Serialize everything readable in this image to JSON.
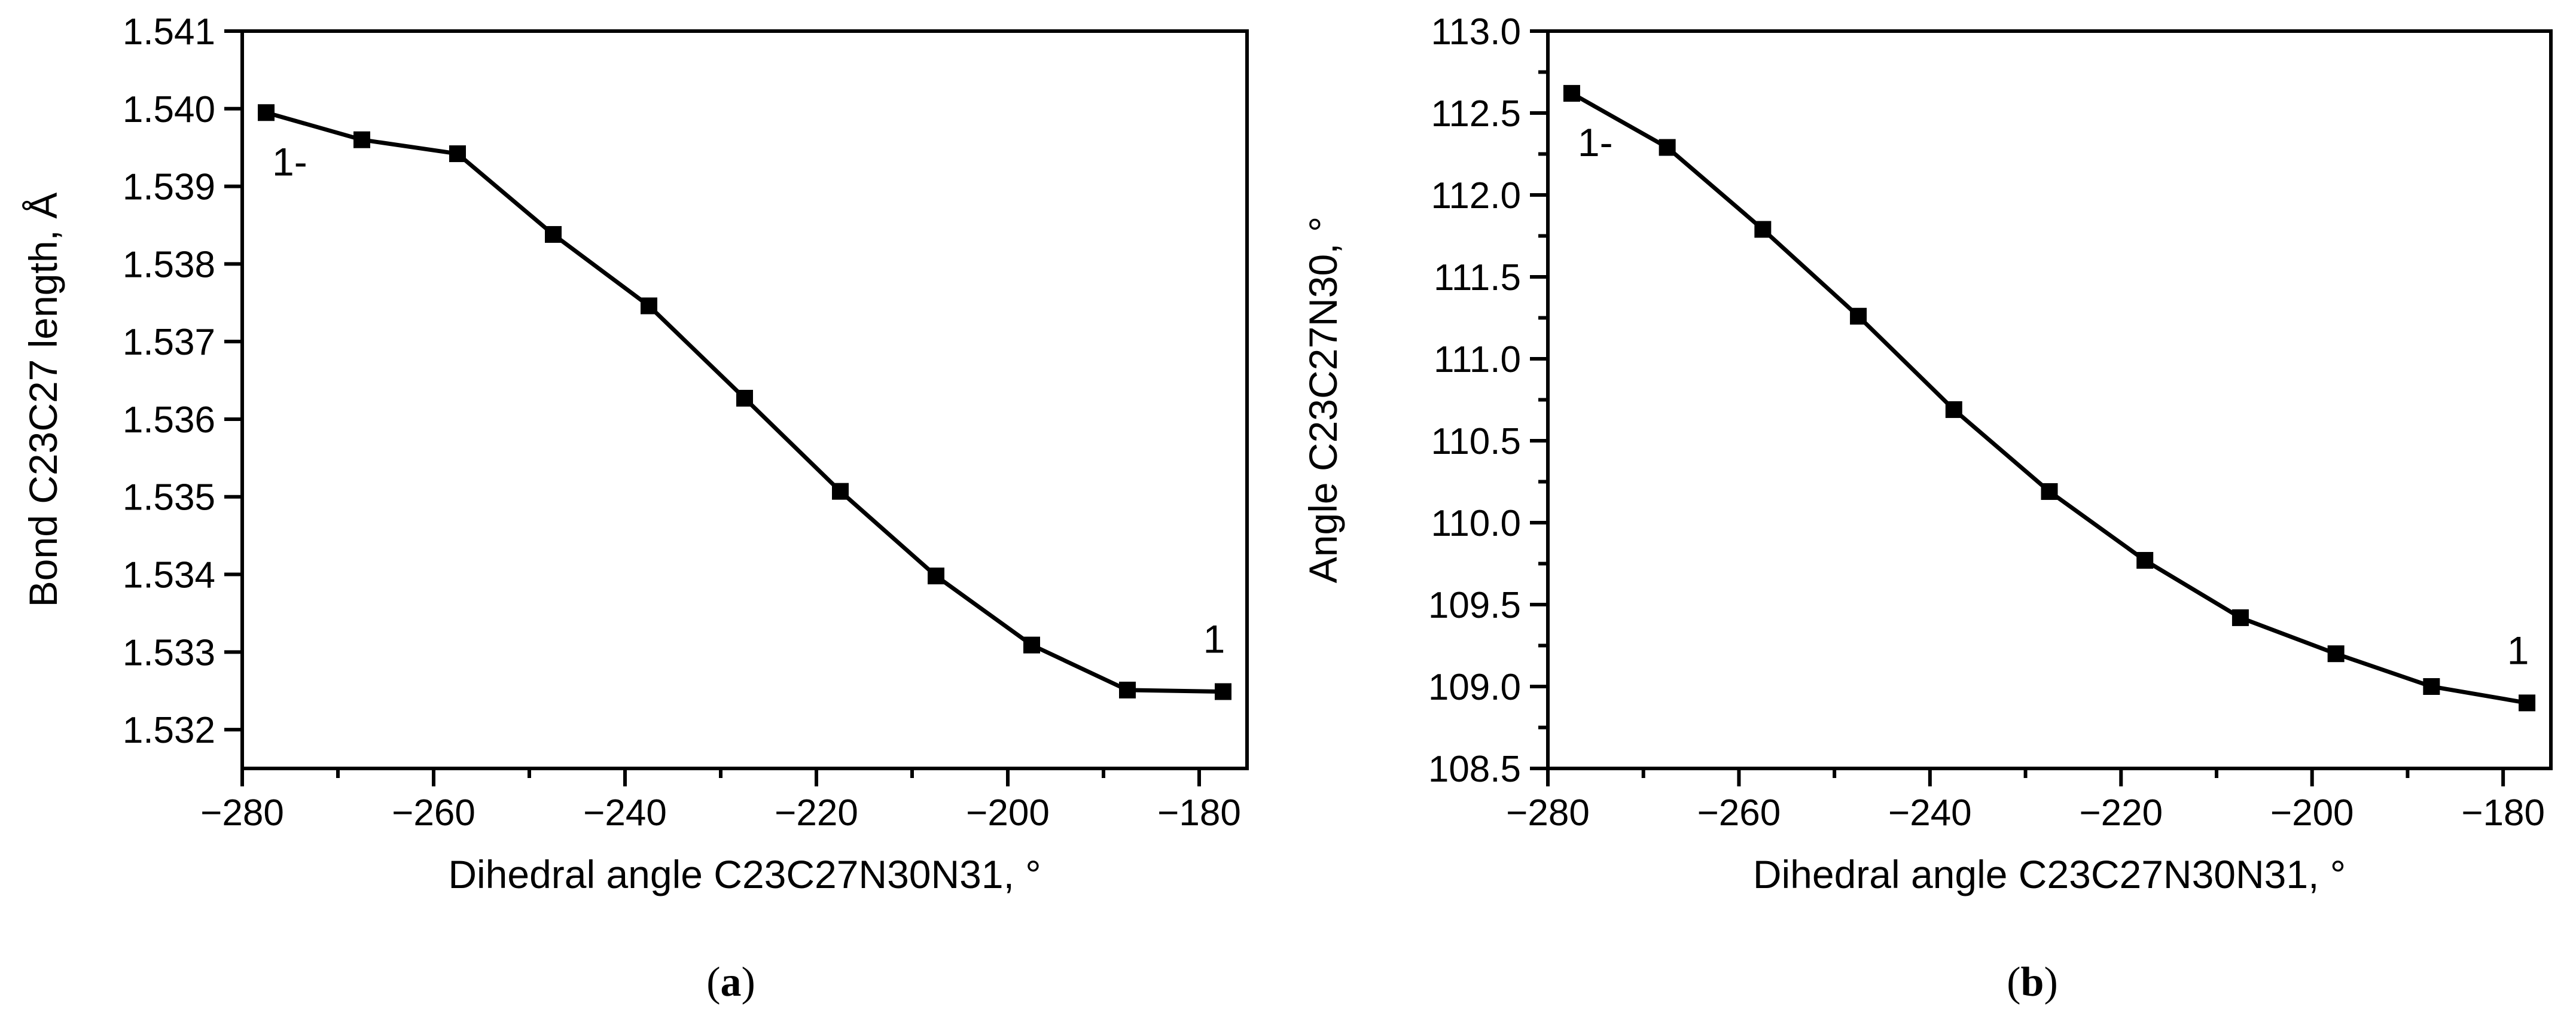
{
  "chart_data": [
    {
      "type": "line",
      "xlabel": "Dihedral angle C23C27N30N31, °",
      "ylabel": "Bond C23C27 length, Å",
      "xlim": [
        -280,
        -175
      ],
      "ylim": [
        1.5315,
        1.541
      ],
      "x_ticks": [
        -280,
        -260,
        -240,
        -220,
        -200,
        -180
      ],
      "x_tick_labels": [
        "−280",
        "−260",
        "−240",
        "−220",
        "−200",
        "−180"
      ],
      "y_ticks": [
        1.532,
        1.533,
        1.534,
        1.535,
        1.536,
        1.537,
        1.538,
        1.539,
        1.54,
        1.541
      ],
      "y_tick_labels": [
        "1.532",
        "1.533",
        "1.534",
        "1.535",
        "1.536",
        "1.537",
        "1.538",
        "1.539",
        "1.540",
        "1.541"
      ],
      "x": [
        -277.5,
        -267.5,
        -257.5,
        -247.5,
        -237.5,
        -227.5,
        -217.5,
        -207.5,
        -197.5,
        -187.5,
        -177.5
      ],
      "series": [
        {
          "values": [
            1.53995,
            1.5396,
            1.53942,
            1.53838,
            1.53746,
            1.53627,
            1.53507,
            1.53398,
            1.53309,
            1.53251,
            1.53249
          ]
        }
      ],
      "annotations": [
        {
          "text": "1-",
          "x": -277.5,
          "y": 1.53995
        },
        {
          "text": "1",
          "x": -177.5,
          "y": 1.53249
        }
      ],
      "caption_letter": "a",
      "grid": false,
      "marker": "square"
    },
    {
      "type": "line",
      "xlabel": "Dihedral angle C23C27N30N31, °",
      "ylabel": "Angle C23C27N30, °",
      "xlim": [
        -280,
        -175
      ],
      "ylim": [
        108.5,
        113.0
      ],
      "x_ticks": [
        -280,
        -260,
        -240,
        -220,
        -200,
        -180
      ],
      "x_tick_labels": [
        "−280",
        "−260",
        "−240",
        "−220",
        "−200",
        "−180"
      ],
      "y_ticks": [
        108.5,
        109.0,
        109.5,
        110.0,
        110.5,
        111.0,
        111.5,
        112.0,
        112.5,
        113.0
      ],
      "y_tick_labels": [
        "108.5",
        "109.0",
        "109.5",
        "110.0",
        "110.5",
        "111.0",
        "111.5",
        "112.0",
        "112.5",
        "113.0"
      ],
      "x": [
        -277.5,
        -267.5,
        -257.5,
        -247.5,
        -237.5,
        -227.5,
        -217.5,
        -207.5,
        -197.5,
        -187.5,
        -177.5
      ],
      "series": [
        {
          "values": [
            112.62,
            112.29,
            111.79,
            111.26,
            110.69,
            110.19,
            109.77,
            109.42,
            109.2,
            109.0,
            108.9
          ]
        }
      ],
      "annotations": [
        {
          "text": "1-",
          "x": -277.5,
          "y": 112.62
        },
        {
          "text": "1",
          "x": -177.5,
          "y": 108.9
        }
      ],
      "caption_letter": "b",
      "grid": false,
      "marker": "square"
    }
  ]
}
